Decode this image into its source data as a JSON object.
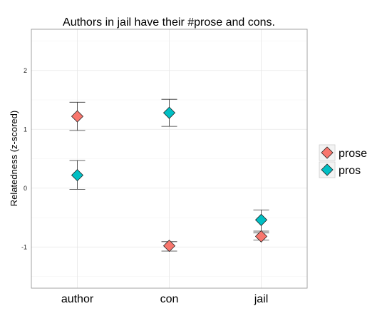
{
  "chart_data": {
    "type": "scatter",
    "title": "Authors in jail have their #prose and cons.",
    "xlabel": "",
    "ylabel": "Relatedness (z-scored)",
    "categories": [
      "author",
      "con",
      "jail"
    ],
    "ylim": [
      -1.7,
      2.7
    ],
    "yticks": [
      -1,
      0,
      1,
      2
    ],
    "grid": true,
    "legend_position": "right",
    "error_bars": true,
    "series": [
      {
        "name": "prose",
        "color": "#F8766D",
        "values": [
          1.22,
          -0.98,
          -0.82
        ],
        "err_low": [
          0.98,
          -1.07,
          -0.88
        ],
        "err_high": [
          1.46,
          -0.91,
          -0.73
        ]
      },
      {
        "name": "pros",
        "color": "#00BFC4",
        "values": [
          0.22,
          1.28,
          -0.54
        ],
        "err_low": [
          -0.02,
          1.05,
          -0.76
        ],
        "err_high": [
          0.47,
          1.51,
          -0.37
        ]
      }
    ]
  }
}
